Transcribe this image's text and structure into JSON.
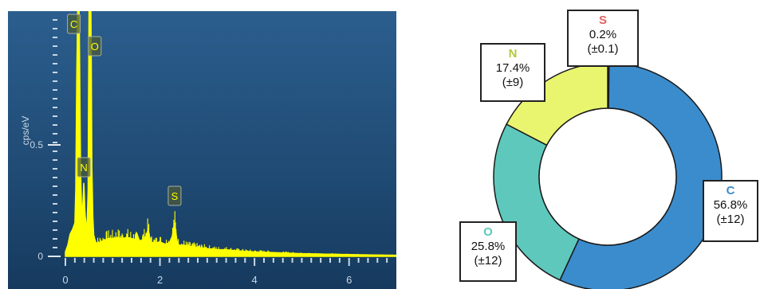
{
  "chart_data": [
    {
      "type": "line",
      "title": "",
      "xlabel": "",
      "ylabel": "cps/eV",
      "xlim": [
        0,
        7
      ],
      "ylim": [
        0,
        1.1
      ],
      "x_ticks": [
        0,
        2,
        4,
        6
      ],
      "x_tick_labels": [
        "0",
        "2",
        "4",
        "6"
      ],
      "y_ticks": [
        0,
        0.5
      ],
      "y_tick_labels": [
        "0",
        "0.5"
      ],
      "grid": false,
      "background_color": "#1f4a73",
      "line_color": "#ffff00",
      "peaks": [
        {
          "label": "C",
          "x": 0.28,
          "y": 1.1
        },
        {
          "label": "N",
          "x": 0.39,
          "y": 0.33
        },
        {
          "label": "O",
          "x": 0.52,
          "y": 1.1
        },
        {
          "label": "S",
          "x": 2.31,
          "y": 0.15
        }
      ],
      "spectrum": {
        "x": [
          0.0,
          0.05,
          0.1,
          0.15,
          0.2,
          0.22,
          0.24,
          0.26,
          0.27,
          0.28,
          0.29,
          0.3,
          0.32,
          0.34,
          0.36,
          0.37,
          0.38,
          0.39,
          0.4,
          0.41,
          0.42,
          0.44,
          0.46,
          0.48,
          0.49,
          0.5,
          0.51,
          0.52,
          0.53,
          0.54,
          0.55,
          0.56,
          0.58,
          0.6,
          0.65,
          0.7,
          0.8,
          0.9,
          1.0,
          1.1,
          1.2,
          1.3,
          1.4,
          1.5,
          1.6,
          1.7,
          1.75,
          1.8,
          1.9,
          2.0,
          2.1,
          2.2,
          2.26,
          2.3,
          2.31,
          2.33,
          2.36,
          2.4,
          2.5,
          2.6,
          2.8,
          3.0,
          3.2,
          3.4,
          3.6,
          3.8,
          4.0,
          4.3,
          4.6,
          5.0,
          5.5,
          6.0,
          6.5,
          7.0
        ],
        "y": [
          0.02,
          0.05,
          0.1,
          0.12,
          0.15,
          0.3,
          0.8,
          1.1,
          1.1,
          1.1,
          1.1,
          0.9,
          0.4,
          0.22,
          0.2,
          0.24,
          0.28,
          0.33,
          0.28,
          0.22,
          0.18,
          0.14,
          0.15,
          0.3,
          0.7,
          1.1,
          1.1,
          1.1,
          1.1,
          1.1,
          0.8,
          0.4,
          0.18,
          0.09,
          0.06,
          0.06,
          0.07,
          0.08,
          0.08,
          0.085,
          0.08,
          0.085,
          0.08,
          0.075,
          0.07,
          0.09,
          0.12,
          0.065,
          0.06,
          0.065,
          0.055,
          0.06,
          0.09,
          0.14,
          0.15,
          0.12,
          0.07,
          0.05,
          0.05,
          0.045,
          0.04,
          0.035,
          0.03,
          0.03,
          0.025,
          0.022,
          0.02,
          0.018,
          0.015,
          0.012,
          0.01,
          0.008,
          0.006,
          0.005
        ]
      }
    },
    {
      "type": "pie",
      "style": "donut",
      "title": "",
      "series": [
        {
          "name": "C",
          "value": 56.8,
          "display": "56.8%",
          "error": "(±12)",
          "color": "#3b8ccc",
          "label_color": "#3b8ccc"
        },
        {
          "name": "O",
          "value": 25.8,
          "display": "25.8%",
          "error": "(±12)",
          "color": "#5ec8bc",
          "label_color": "#5ec8bc"
        },
        {
          "name": "N",
          "value": 17.4,
          "display": "17.4%",
          "error": "(±9)",
          "color": "#e9f56f",
          "label_color": "#b4c83a"
        },
        {
          "name": "S",
          "value": 0.2,
          "display": "0.2%",
          "error": "(±0.1)",
          "color": "#e06060",
          "label_color": "#e06060"
        }
      ]
    }
  ]
}
